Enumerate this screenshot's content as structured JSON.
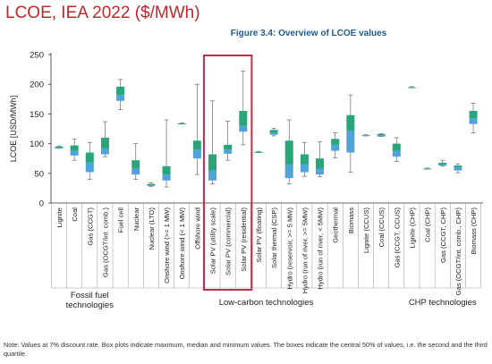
{
  "slide_title": "LCOE, IEA 2022 ($/MWh)",
  "figure_title": "Figure 3.4: Overview of LCOE values",
  "note": "Note: Values at 7% discount rate. Box plots indicate maximum, median and minimum values. The boxes indicate the central 50% of values, i.e. the second and the third quartile.",
  "colors": {
    "box_lower": "#4fa3d9",
    "box_upper": "#2aa57a",
    "whisker": "#6b6b6b",
    "highlight": "#c62a4a",
    "axis": "#333333",
    "grid": "#d9d9d9",
    "slide_title": "#c0272d",
    "figure_title": "#1f5b8e"
  },
  "chart_data": {
    "type": "boxplot",
    "title": "Figure 3.4: Overview of LCOE values",
    "ylabel": "LCOE [USD/MWh]",
    "ylim": [
      0,
      250
    ],
    "yticks": [
      0,
      50,
      100,
      150,
      200,
      250
    ],
    "grid": false,
    "highlight_categories": [
      "Solar PV (utility scale)",
      "Solar PV (commercial)",
      "Solar PV (residential)"
    ],
    "groups": [
      {
        "label": "Fossil fuel technologies",
        "categories": [
          "Lignite",
          "Coal",
          "Gas (CCGT)",
          "Gas (OCGT/int. comb.)",
          "Fuel cell"
        ]
      },
      {
        "label": "Low-carbon technologies",
        "categories": [
          "Nuclear",
          "Nuclear (LTO)",
          "Onshore wind (>= 1 MW)",
          "Onshore wind (< 1 MW)",
          "Offshore wind",
          "Solar PV (utility scale)",
          "Solar PV (commercial)",
          "Solar PV (residential)",
          "Solar PV (floating)",
          "Solar thermal (CSP)",
          "Hydro (reservoir, >= 5 MW)",
          "Hydro (run of river, >= 5MW)",
          "Hydro (run of river, < 5MW)",
          "Geothermal",
          "Biomass",
          "Lignite (CCUS)",
          "Coal (CCUS)",
          "Gas (CCGT, CCUS)"
        ]
      },
      {
        "label": "CHP technologies",
        "categories": [
          "Lignite (CHP)",
          "Coal (CHP)",
          "Gas (CCGT, CHP)",
          "Gas (OCGT/int. comb., CHP)",
          "Biomass (CHP)"
        ]
      }
    ],
    "series": [
      {
        "name": "Lignite",
        "min": 92,
        "q1": 92,
        "median": 93,
        "q3": 95,
        "max": 96
      },
      {
        "name": "Coal",
        "min": 72,
        "q1": 80,
        "median": 88,
        "q3": 97,
        "max": 108
      },
      {
        "name": "Gas (CCGT)",
        "min": 40,
        "q1": 52,
        "median": 68,
        "q3": 85,
        "max": 102
      },
      {
        "name": "Gas (OCGT/int. comb.)",
        "min": 78,
        "q1": 82,
        "median": 92,
        "q3": 110,
        "max": 137
      },
      {
        "name": "Fuel cell",
        "min": 157,
        "q1": 172,
        "median": 182,
        "q3": 196,
        "max": 208
      },
      {
        "name": "Nuclear",
        "min": 40,
        "q1": 48,
        "median": 58,
        "q3": 72,
        "max": 100
      },
      {
        "name": "Nuclear (LTO)",
        "min": 28,
        "q1": 29,
        "median": 30,
        "q3": 32,
        "max": 34
      },
      {
        "name": "Onshore wind (>= 1 MW)",
        "min": 27,
        "q1": 38,
        "median": 48,
        "q3": 62,
        "max": 140
      },
      {
        "name": "Onshore wind (< 1 MW)",
        "min": 133,
        "q1": 133,
        "median": 134,
        "q3": 134,
        "max": 135
      },
      {
        "name": "Offshore wind",
        "min": 48,
        "q1": 75,
        "median": 90,
        "q3": 105,
        "max": 200
      },
      {
        "name": "Solar PV (utility scale)",
        "min": 32,
        "q1": 38,
        "median": 55,
        "q3": 82,
        "max": 172
      },
      {
        "name": "Solar PV (commercial)",
        "min": 72,
        "q1": 83,
        "median": 90,
        "q3": 98,
        "max": 138
      },
      {
        "name": "Solar PV (residential)",
        "min": 98,
        "q1": 120,
        "median": 130,
        "q3": 155,
        "max": 222
      },
      {
        "name": "Solar PV (floating)",
        "min": 85,
        "q1": 85,
        "median": 86,
        "q3": 86,
        "max": 87
      },
      {
        "name": "Solar thermal (CSP)",
        "min": 113,
        "q1": 115,
        "median": 118,
        "q3": 123,
        "max": 126
      },
      {
        "name": "Hydro (reservoir, >= 5 MW)",
        "min": 32,
        "q1": 42,
        "median": 65,
        "q3": 105,
        "max": 140
      },
      {
        "name": "Hydro (run of river, >= 5MW)",
        "min": 45,
        "q1": 52,
        "median": 65,
        "q3": 82,
        "max": 102
      },
      {
        "name": "Hydro (run of river, < 5MW)",
        "min": 44,
        "q1": 48,
        "median": 58,
        "q3": 75,
        "max": 103
      },
      {
        "name": "Geothermal",
        "min": 76,
        "q1": 88,
        "median": 98,
        "q3": 108,
        "max": 118
      },
      {
        "name": "Biomass",
        "min": 52,
        "q1": 85,
        "median": 122,
        "q3": 148,
        "max": 182
      },
      {
        "name": "Lignite (CCUS)",
        "min": 113,
        "q1": 113,
        "median": 114,
        "q3": 114,
        "max": 115
      },
      {
        "name": "Coal (CCUS)",
        "min": 112,
        "q1": 112,
        "median": 114,
        "q3": 116,
        "max": 117
      },
      {
        "name": "Gas (CCGT, CCUS)",
        "min": 70,
        "q1": 78,
        "median": 88,
        "q3": 100,
        "max": 110
      },
      {
        "name": "Lignite (CHP)",
        "min": 194,
        "q1": 194,
        "median": 195,
        "q3": 195,
        "max": 196
      },
      {
        "name": "Coal (CHP)",
        "min": 57,
        "q1": 57,
        "median": 58,
        "q3": 58,
        "max": 59
      },
      {
        "name": "Gas (CCGT, CHP)",
        "min": 62,
        "q1": 63,
        "median": 65,
        "q3": 68,
        "max": 72
      },
      {
        "name": "Gas (OCGT/int. comb., CHP)",
        "min": 51,
        "q1": 55,
        "median": 60,
        "q3": 63,
        "max": 66
      },
      {
        "name": "Biomass (CHP)",
        "min": 118,
        "q1": 133,
        "median": 143,
        "q3": 155,
        "max": 168
      }
    ]
  }
}
